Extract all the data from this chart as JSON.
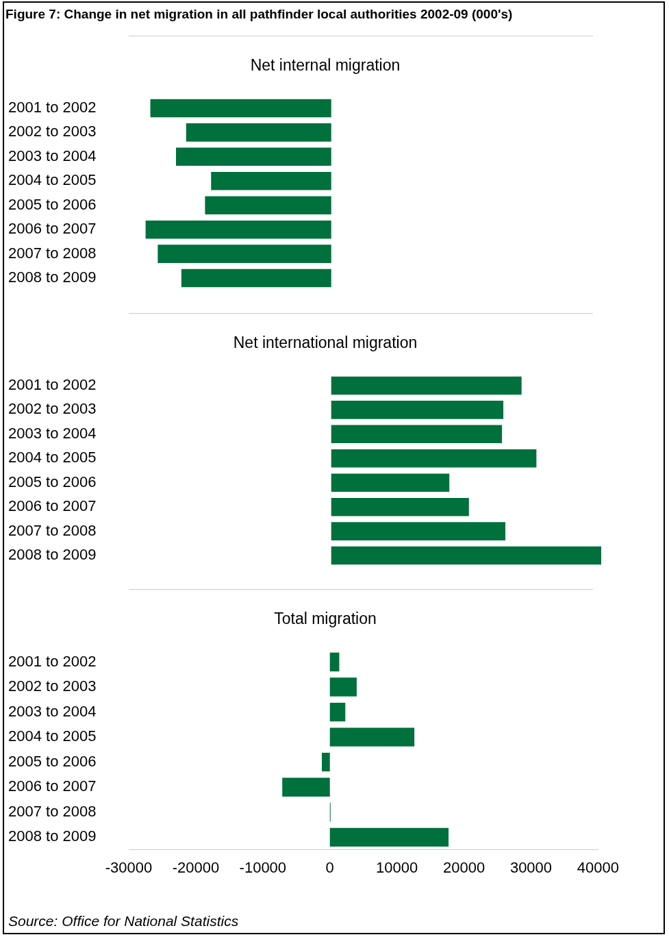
{
  "chart_data": [
    {
      "type": "bar",
      "orientation": "horizontal",
      "title": "Figure 7:  Change in net migration in all pathfinder local authorities 2002-09 (000's)",
      "subtitle": "Net internal migration",
      "categories": [
        "2001 to 2002",
        "2002 to 2003",
        "2003 to 2004",
        "2004 to 2005",
        "2005 to 2006",
        "2006 to 2007",
        "2007 to 2008",
        "2008 to 2009"
      ],
      "values": [
        -26800,
        -21500,
        -23000,
        -17800,
        -18700,
        -27500,
        -25700,
        -22200
      ],
      "color": "#00703c",
      "xlim": [
        -30000,
        40000
      ],
      "xticks": [
        -30000,
        -20000,
        -10000,
        0,
        10000,
        20000,
        30000,
        40000
      ],
      "tick_labels": "y"
    },
    {
      "type": "bar",
      "orientation": "horizontal",
      "title": "Net international migration",
      "categories": [
        "2001 to 2002",
        "2002 to 2003",
        "2003 to 2004",
        "2004 to 2005",
        "2005 to 2006",
        "2006 to 2007",
        "2007 to 2008",
        "2008 to 2009"
      ],
      "values": [
        28200,
        25500,
        25300,
        30400,
        17500,
        20400,
        25800,
        40000
      ],
      "color": "#00703c",
      "xlim": [
        -30000,
        40000
      ],
      "xticks": [
        -30000,
        -20000,
        -10000,
        0,
        10000,
        20000,
        30000,
        40000
      ],
      "tick_labels": "y"
    },
    {
      "type": "bar",
      "orientation": "horizontal",
      "title": "Total migration",
      "categories": [
        "2001 to 2002",
        "2002 to 2003",
        "2003 to 2004",
        "2004 to 2005",
        "2005 to 2006",
        "2006 to 2007",
        "2007 to 2008",
        "2008 to 2009"
      ],
      "values": [
        1400,
        4000,
        2300,
        12600,
        -1200,
        -7100,
        100,
        17700
      ],
      "color": "#00703c",
      "xlim": [
        -30000,
        40000
      ],
      "xticks": [
        -30000,
        -20000,
        -10000,
        0,
        10000,
        20000,
        30000,
        40000
      ],
      "annotations": [
        "Source: Office for National Statistics"
      ]
    }
  ]
}
